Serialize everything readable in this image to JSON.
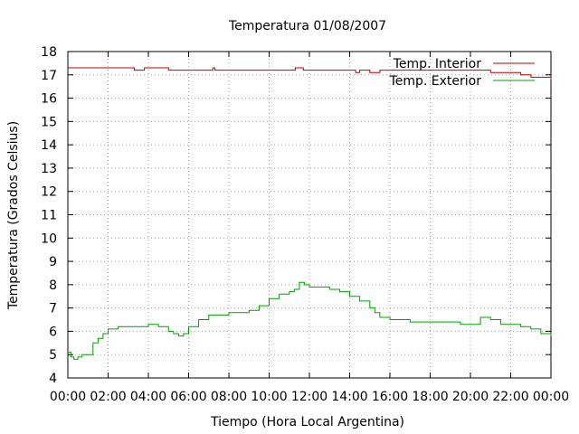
{
  "chart_data": {
    "type": "line",
    "title": "Temperatura 01/08/2007",
    "xlabel": "Tiempo (Hora Local Argentina)",
    "ylabel": "Temperatura (Grados Celsius)",
    "xlim": [
      0,
      24
    ],
    "ylim": [
      4,
      18
    ],
    "x_tick_values": [
      0,
      2,
      4,
      6,
      8,
      10,
      12,
      14,
      16,
      18,
      20,
      22,
      24
    ],
    "x_tick_labels": [
      "00:00",
      "02:00",
      "04:00",
      "06:00",
      "08:00",
      "10:00",
      "12:00",
      "14:00",
      "16:00",
      "18:00",
      "20:00",
      "22:00",
      "00:00"
    ],
    "y_tick_values": [
      4,
      5,
      6,
      7,
      8,
      9,
      10,
      11,
      12,
      13,
      14,
      15,
      16,
      17,
      18
    ],
    "y_tick_labels": [
      "4",
      "5",
      "6",
      "7",
      "8",
      "9",
      "10",
      "11",
      "12",
      "13",
      "14",
      "15",
      "16",
      "17",
      "18"
    ],
    "grid": true,
    "legend_position": "top-right",
    "series": [
      {
        "name": "Temp. Interior",
        "color": "#c00000",
        "x": [
          0,
          1,
          2,
          3,
          3.3,
          3.4,
          3.8,
          4,
          4.5,
          5,
          5.5,
          6,
          6.5,
          7,
          7.2,
          7.3,
          8,
          9,
          10,
          11,
          11.3,
          11.7,
          12,
          13,
          14,
          14.3,
          14.5,
          15,
          15.5,
          16,
          17,
          18,
          19,
          20,
          21,
          22,
          22.5,
          23,
          24
        ],
        "y": [
          17.3,
          17.3,
          17.3,
          17.3,
          17.2,
          17.2,
          17.3,
          17.3,
          17.3,
          17.2,
          17.2,
          17.2,
          17.2,
          17.2,
          17.3,
          17.2,
          17.2,
          17.2,
          17.2,
          17.2,
          17.3,
          17.2,
          17.2,
          17.2,
          17.2,
          17.1,
          17.2,
          17.1,
          17.2,
          17.2,
          17.2,
          17.2,
          17.2,
          17.2,
          17.1,
          17.1,
          17.0,
          16.9,
          16.8
        ]
      },
      {
        "name": "Temp. Exterior",
        "color": "#00a000",
        "x": [
          0,
          0.15,
          0.3,
          0.5,
          0.7,
          1,
          1.25,
          1.5,
          1.75,
          2,
          2.5,
          3,
          3.5,
          4,
          4.5,
          5,
          5.25,
          5.5,
          5.75,
          6,
          6.5,
          7,
          7.5,
          8,
          8.5,
          9,
          9.5,
          10,
          10.5,
          11,
          11.25,
          11.5,
          11.75,
          12,
          12.5,
          13,
          13.5,
          14,
          14.5,
          15,
          15.25,
          15.5,
          16,
          16.5,
          17,
          18,
          19,
          19.5,
          20,
          20.5,
          21,
          21.5,
          22,
          22.5,
          23,
          23.5,
          24
        ],
        "y": [
          5.1,
          4.9,
          4.8,
          4.9,
          5.0,
          5.0,
          5.5,
          5.7,
          5.9,
          6.1,
          6.2,
          6.2,
          6.2,
          6.3,
          6.2,
          6.0,
          5.9,
          5.8,
          5.9,
          6.2,
          6.5,
          6.7,
          6.7,
          6.8,
          6.8,
          6.9,
          7.1,
          7.4,
          7.6,
          7.7,
          7.8,
          8.1,
          8.0,
          7.9,
          7.9,
          7.8,
          7.7,
          7.5,
          7.3,
          7.0,
          6.8,
          6.6,
          6.5,
          6.5,
          6.4,
          6.4,
          6.4,
          6.3,
          6.3,
          6.6,
          6.5,
          6.3,
          6.3,
          6.2,
          6.1,
          5.9,
          5.8
        ]
      }
    ]
  }
}
